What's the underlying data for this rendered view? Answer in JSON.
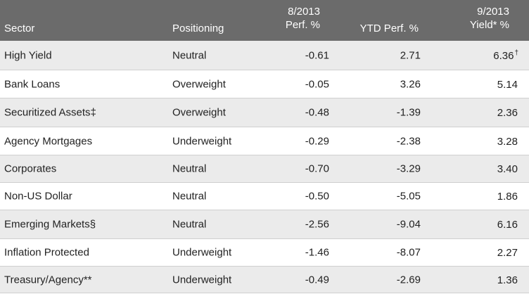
{
  "header": {
    "sector": "Sector",
    "positioning": "Positioning",
    "perf_line1": "8/2013",
    "perf_line2": "Perf. %",
    "ytd": "YTD Perf. %",
    "yield_line1": "9/2013",
    "yield_line2": "Yield* %"
  },
  "rows": [
    {
      "sector": "High Yield",
      "positioning": "Neutral",
      "perf": "-0.61",
      "ytd": "2.71",
      "yield": "6.36",
      "yield_mark": "†"
    },
    {
      "sector": "Bank Loans",
      "positioning": "Overweight",
      "perf": "-0.05",
      "ytd": "3.26",
      "yield": "5.14",
      "yield_mark": ""
    },
    {
      "sector": "Securitized Assets‡",
      "positioning": "Overweight",
      "perf": "-0.48",
      "ytd": "-1.39",
      "yield": "2.36",
      "yield_mark": ""
    },
    {
      "sector": "Agency Mortgages",
      "positioning": "Underweight",
      "perf": "-0.29",
      "ytd": "-2.38",
      "yield": "3.28",
      "yield_mark": ""
    },
    {
      "sector": "Corporates",
      "positioning": "Neutral",
      "perf": "-0.70",
      "ytd": "-3.29",
      "yield": "3.40",
      "yield_mark": ""
    },
    {
      "sector": "Non-US Dollar",
      "positioning": "Neutral",
      "perf": "-0.50",
      "ytd": "-5.05",
      "yield": "1.86",
      "yield_mark": ""
    },
    {
      "sector": "Emerging Markets§",
      "positioning": "Neutral",
      "perf": "-2.56",
      "ytd": "-9.04",
      "yield": "6.16",
      "yield_mark": ""
    },
    {
      "sector": "Inflation Protected",
      "positioning": "Underweight",
      "perf": "-1.46",
      "ytd": "-8.07",
      "yield": "2.27",
      "yield_mark": ""
    },
    {
      "sector": "Treasury/Agency**",
      "positioning": "Underweight",
      "perf": "-0.49",
      "ytd": "-2.69",
      "yield": "1.36",
      "yield_mark": ""
    }
  ],
  "colors": {
    "header_bg": "#6b6b6b",
    "shaded_row": "#ebebeb",
    "divider": "#cfcfcf"
  }
}
